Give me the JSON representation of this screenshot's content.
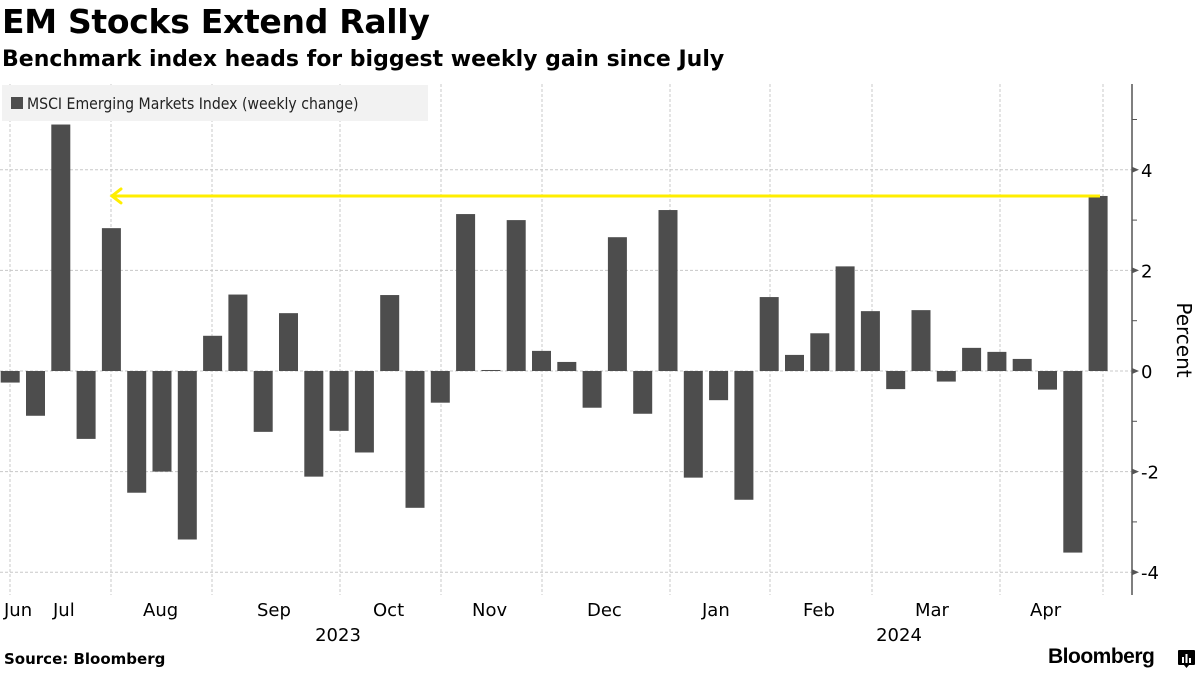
{
  "header": {
    "title": "EM Stocks Extend Rally",
    "subtitle": "Benchmark index heads for biggest weekly gain since July"
  },
  "footer": {
    "source": "Source: Bloomberg",
    "brand": "Bloomberg"
  },
  "colors": {
    "bar": "#4d4d4d",
    "arrow": "#ffee00",
    "grid": "#c8c8c8",
    "legend_bg": "#f2f2f2"
  },
  "chart_data": {
    "type": "bar",
    "title": "EM Stocks Extend Rally",
    "subtitle": "Benchmark index heads for biggest weekly gain since July",
    "legend": [
      "MSCI Emerging Markets Index (weekly change)"
    ],
    "legend_position": "top-left",
    "xlabel": "",
    "ylabel": "Percent",
    "y_axis_side": "right",
    "ylim": [
      -4.4,
      5.7
    ],
    "yticks": [
      -4,
      -2,
      0,
      2,
      4
    ],
    "grid": true,
    "x_month_labels": [
      "Jun",
      "Jul",
      "Aug",
      "Sep",
      "Oct",
      "Nov",
      "Dec",
      "Jan",
      "Feb",
      "Mar",
      "Apr"
    ],
    "x_year_labels": [
      "2023",
      "2024"
    ],
    "series": [
      {
        "name": "MSCI Emerging Markets Index (weekly change)",
        "values": [
          -0.23,
          -0.89,
          4.9,
          -1.35,
          2.84,
          -2.42,
          -2.0,
          -3.35,
          0.7,
          1.52,
          -1.21,
          1.15,
          -2.1,
          -1.19,
          -1.62,
          1.51,
          -2.72,
          -0.63,
          3.12,
          0.02,
          3.0,
          0.4,
          0.18,
          -0.73,
          2.66,
          -0.85,
          3.2,
          -2.12,
          -0.58,
          -2.56,
          1.47,
          0.32,
          0.75,
          2.08,
          1.19,
          -0.36,
          1.21,
          -0.21,
          0.46,
          0.38,
          0.24,
          -0.37,
          -3.61,
          3.48
        ]
      }
    ],
    "annotations": [
      {
        "type": "arrow",
        "description": "Horizontal arrow from latest week's gain back to July",
        "value": 3.48
      }
    ]
  }
}
